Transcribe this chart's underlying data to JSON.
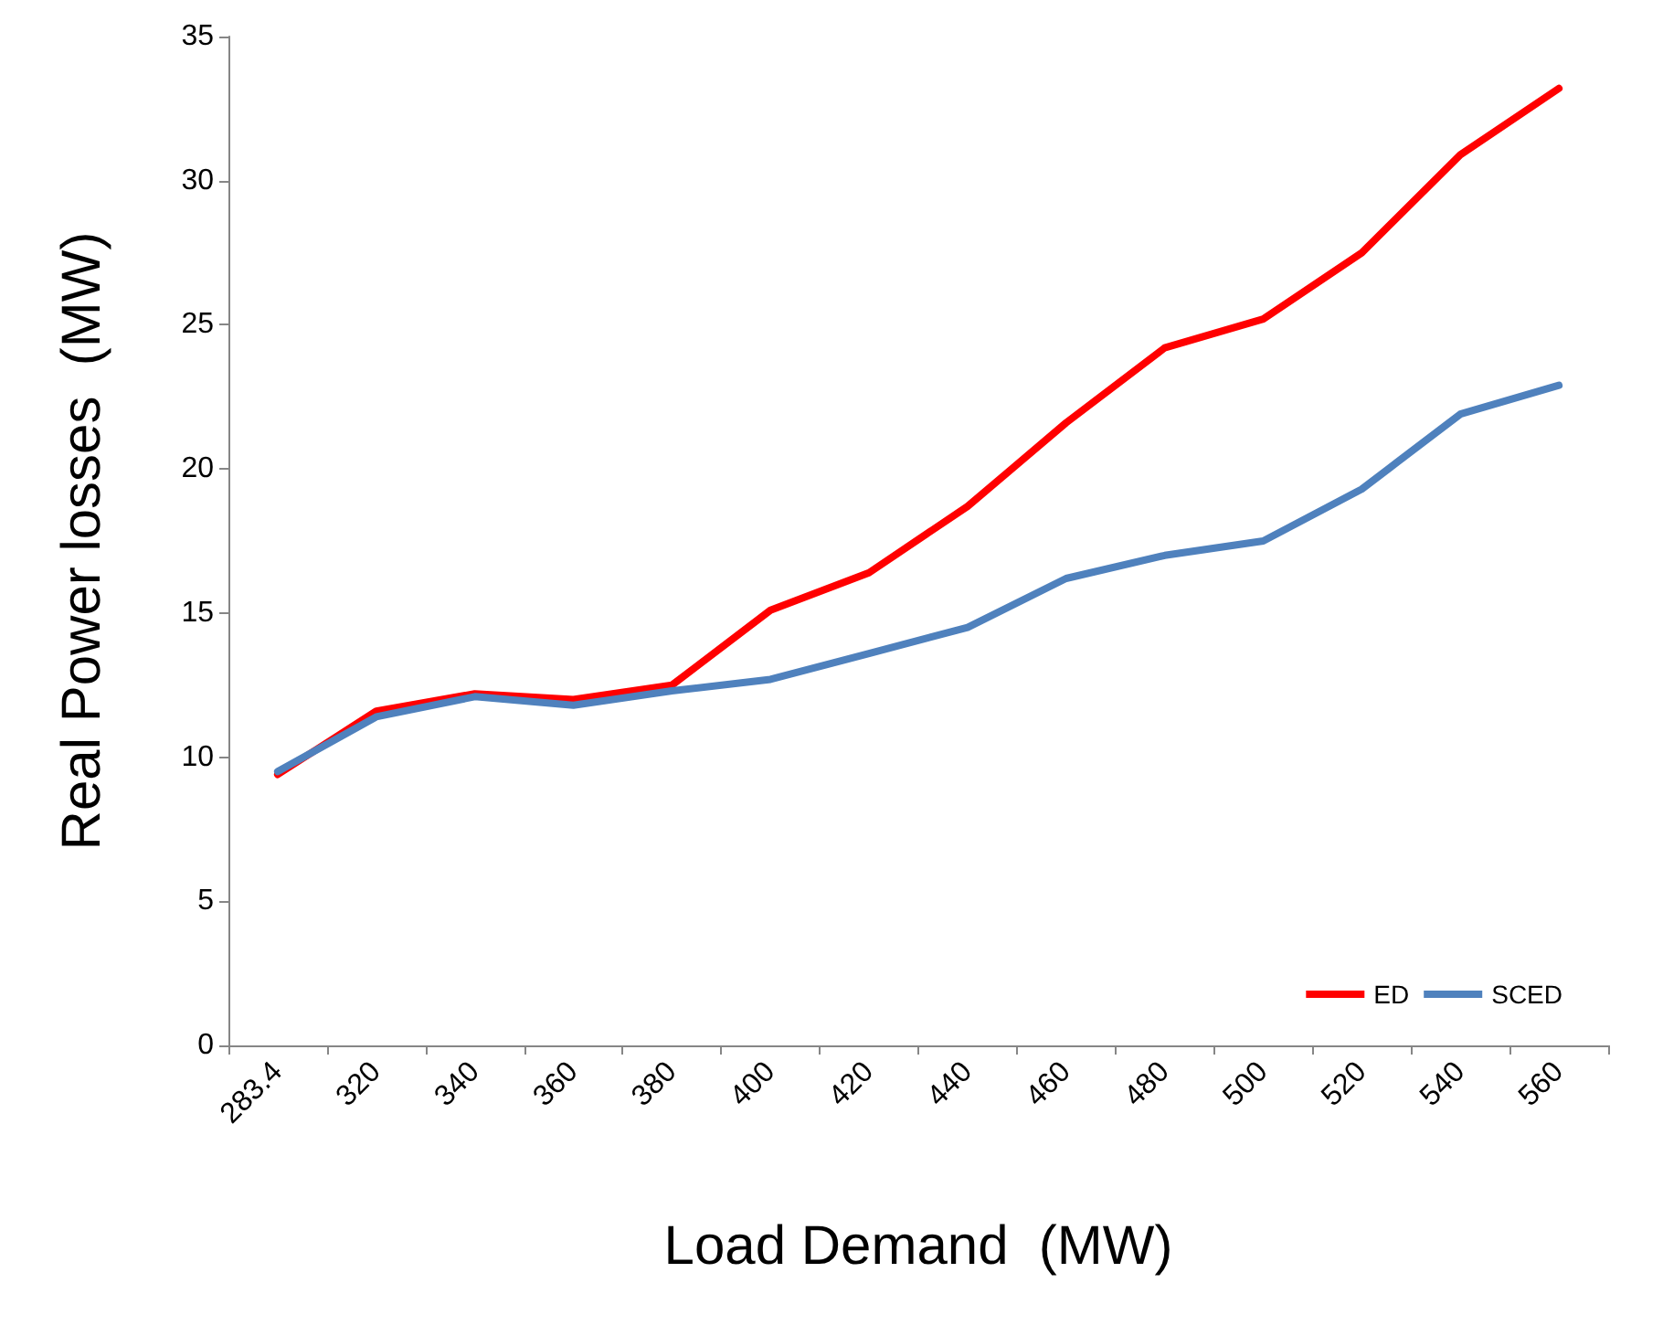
{
  "chart_data": {
    "type": "line",
    "xlabel": "Load Demand  (MW)",
    "ylabel": "Real Power losses  (MW)",
    "categories": [
      "283.4",
      "320",
      "340",
      "360",
      "380",
      "400",
      "420",
      "440",
      "460",
      "480",
      "500",
      "520",
      "540",
      "560"
    ],
    "series": [
      {
        "name": "ED",
        "color": "#ff0000",
        "values": [
          9.4,
          11.6,
          12.2,
          12.0,
          12.5,
          15.1,
          16.4,
          18.7,
          21.6,
          24.2,
          25.2,
          27.5,
          30.9,
          33.2
        ]
      },
      {
        "name": "SCED",
        "color": "#4f81bd",
        "values": [
          9.5,
          11.4,
          12.1,
          11.8,
          12.3,
          12.7,
          13.6,
          14.5,
          16.2,
          17.0,
          17.5,
          19.3,
          21.9,
          22.9
        ]
      }
    ],
    "ylim": [
      0,
      35
    ],
    "yticks": [
      0,
      5,
      10,
      15,
      20,
      25,
      30,
      35
    ],
    "grid": false,
    "legend": "bottom right",
    "marker": "none",
    "line_style": "solid"
  }
}
